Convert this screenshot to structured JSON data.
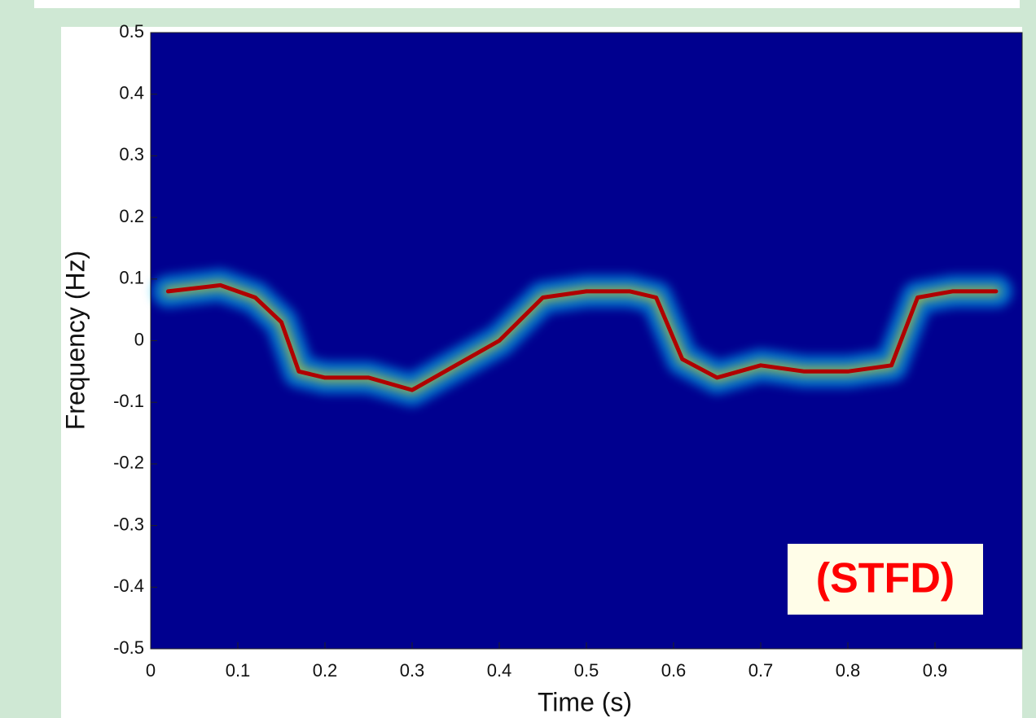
{
  "chart_data": {
    "type": "spectrogram",
    "xlabel": "Time (s)",
    "ylabel": "Frequency (Hz)",
    "annotation": "(STFD)",
    "xlim": [
      0,
      1
    ],
    "ylim": [
      -0.5,
      0.5
    ],
    "xticks": [
      0,
      0.1,
      0.2,
      0.3,
      0.4,
      0.5,
      0.6,
      0.7,
      0.8,
      0.9
    ],
    "yticks": [
      -0.5,
      -0.4,
      -0.3,
      -0.2,
      -0.1,
      0,
      0.1,
      0.2,
      0.3,
      0.4,
      0.5
    ],
    "background": "#00008f",
    "x": [
      0.02,
      0.08,
      0.12,
      0.15,
      0.17,
      0.2,
      0.25,
      0.3,
      0.35,
      0.4,
      0.45,
      0.5,
      0.55,
      0.58,
      0.61,
      0.65,
      0.7,
      0.75,
      0.8,
      0.85,
      0.88,
      0.92,
      0.97
    ],
    "values": [
      0.08,
      0.09,
      0.07,
      0.03,
      -0.05,
      -0.06,
      -0.06,
      -0.08,
      -0.04,
      0.0,
      0.07,
      0.08,
      0.08,
      0.07,
      -0.03,
      -0.06,
      -0.04,
      -0.05,
      -0.05,
      -0.04,
      0.07,
      0.08,
      0.08
    ],
    "color": "#b00000"
  }
}
